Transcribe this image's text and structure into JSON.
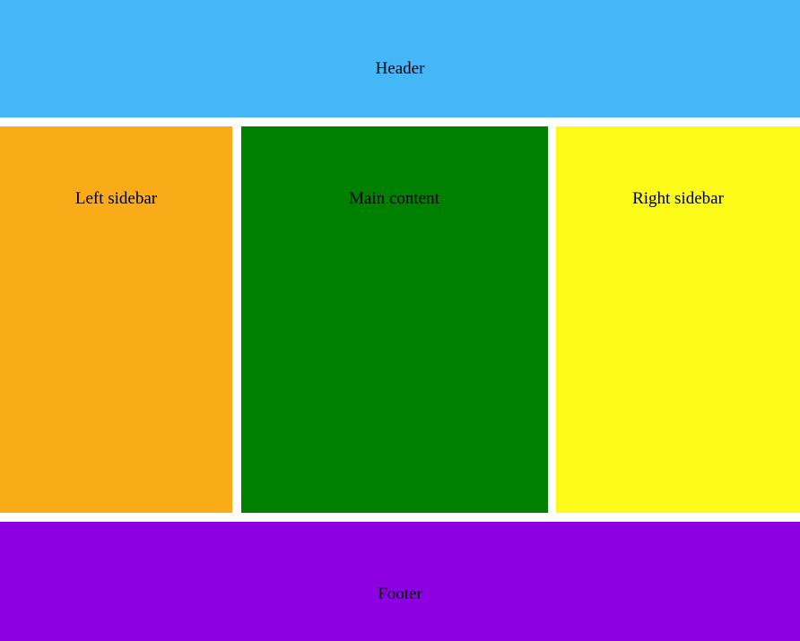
{
  "page": {
    "background": "#ffffff",
    "text_color": "#000000"
  },
  "regions": {
    "header": {
      "label": "Header",
      "bg": "#45b6f7"
    },
    "left_sidebar": {
      "label": "Left sidebar",
      "bg": "#faab18"
    },
    "main_content": {
      "label": "Main content",
      "bg": "#008000"
    },
    "right_sidebar": {
      "label": "Right sidebar",
      "bg": "#fbfb17"
    },
    "footer": {
      "label": "Footer",
      "bg": "#8d00e2"
    }
  }
}
